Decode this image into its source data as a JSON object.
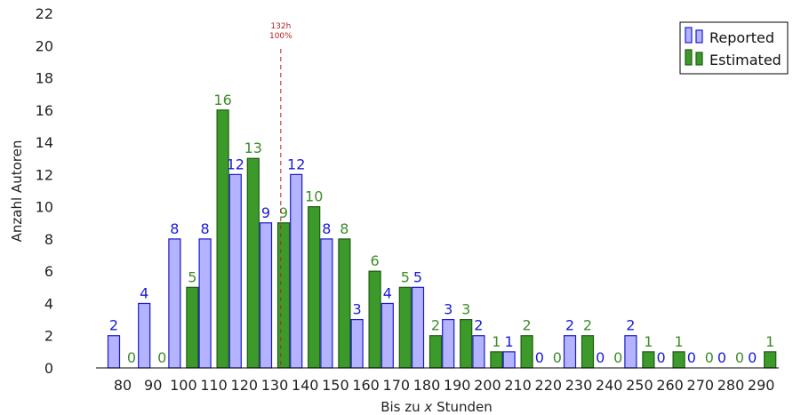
{
  "chart_data": {
    "type": "bar",
    "xlabel_prefix": "Bis zu ",
    "xlabel_var": "x",
    "xlabel_suffix": " Stunden",
    "ylabel": "Anzahl Autoren",
    "ylim": [
      0,
      22
    ],
    "yticks": [
      0,
      2,
      4,
      6,
      8,
      10,
      12,
      14,
      16,
      18,
      20,
      22
    ],
    "grid": false,
    "legend_position": "top-right",
    "categories": [
      "80",
      "90",
      "100",
      "110",
      "120",
      "130",
      "140",
      "150",
      "160",
      "170",
      "180",
      "190",
      "200",
      "210",
      "220",
      "230",
      "240",
      "250",
      "260",
      "270",
      "280",
      "290"
    ],
    "series": [
      {
        "name": "Reported",
        "color": "#b3b3ff",
        "edge_color": "#1a1acc",
        "label_color": "#1a1ad6",
        "values": [
          2,
          4,
          8,
          8,
          12,
          9,
          12,
          8,
          3,
          4,
          5,
          3,
          2,
          1,
          0,
          2,
          0,
          2,
          0,
          0,
          0,
          0
        ]
      },
      {
        "name": "Estimated",
        "color": "#3c9a2a",
        "edge_color": "#1f5c12",
        "label_color": "#3d8c2a",
        "values": [
          0,
          0,
          5,
          16,
          13,
          9,
          10,
          8,
          6,
          5,
          2,
          3,
          1,
          2,
          0,
          2,
          0,
          1,
          1,
          0,
          0,
          1
        ]
      }
    ],
    "reference_line": {
      "x": 132,
      "label_line1": "132h",
      "label_line2": "100%",
      "color": "#b22222"
    }
  }
}
